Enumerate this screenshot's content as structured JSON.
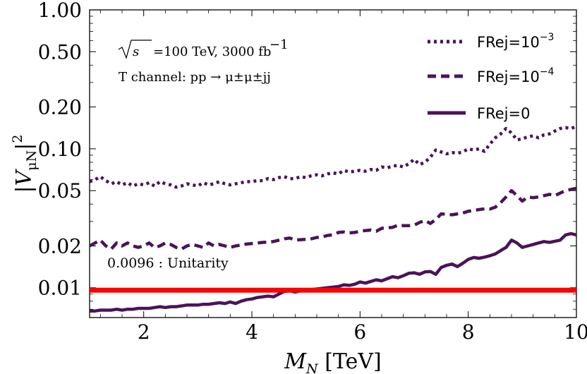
{
  "chart_data": {
    "type": "line",
    "xlabel_var": "M",
    "xlabel_sub": "N",
    "xlabel_unit": "[TeV]",
    "ylabel_left": "|V",
    "ylabel_sub": "μN",
    "ylabel_right": "|",
    "ylabel_sup": "2",
    "xlim": [
      1,
      10
    ],
    "ylim": [
      0.0061,
      1.0
    ],
    "yscale": "log",
    "x_ticks": [
      {
        "value": 2,
        "label": "2"
      },
      {
        "value": 4,
        "label": "4"
      },
      {
        "value": 6,
        "label": "6"
      },
      {
        "value": 8,
        "label": "8"
      },
      {
        "value": 10,
        "label": "10"
      }
    ],
    "y_ticks": [
      {
        "value": 0.01,
        "label": "0.01"
      },
      {
        "value": 0.02,
        "label": "0.02"
      },
      {
        "value": 0.05,
        "label": "0.05"
      },
      {
        "value": 0.1,
        "label": "0.10"
      },
      {
        "value": 0.2,
        "label": "0.20"
      },
      {
        "value": 0.5,
        "label": "0.50"
      },
      {
        "value": 1.0,
        "label": "1.00"
      }
    ],
    "annotations": {
      "sqrt_s": "√s",
      "energy_text": "=100 TeV, 3000 fb",
      "energy_sup": "−1",
      "channel_text": "T channel: pp → μ±μ±jj"
    },
    "unitarity": {
      "value": 0.0096,
      "label": "0.0096 : Unitarity",
      "color": "#ff0000"
    },
    "series_color": "#4a1458",
    "legend_position": "top-right",
    "series": [
      {
        "name": "FRej=10^-3",
        "legend_base": "FRej=10",
        "legend_sup": "−3",
        "style": "dotted",
        "x": [
          1.0,
          1.1,
          1.2,
          1.3,
          1.4,
          1.5,
          1.6,
          1.7,
          1.8,
          1.9,
          2.0,
          2.1,
          2.2,
          2.3,
          2.4,
          2.5,
          2.6,
          2.7,
          2.8,
          2.9,
          3.0,
          3.1,
          3.2,
          3.3,
          3.4,
          3.5,
          3.6,
          3.7,
          3.8,
          3.9,
          4.0,
          4.1,
          4.2,
          4.3,
          4.4,
          4.5,
          4.6,
          4.7,
          4.8,
          4.9,
          5.0,
          5.1,
          5.2,
          5.3,
          5.4,
          5.5,
          5.6,
          5.7,
          5.8,
          5.9,
          6.0,
          6.1,
          6.2,
          6.3,
          6.4,
          6.5,
          6.6,
          6.7,
          6.8,
          6.9,
          7.0,
          7.1,
          7.2,
          7.3,
          7.4,
          7.5,
          7.6,
          7.7,
          7.8,
          7.9,
          8.0,
          8.1,
          8.2,
          8.3,
          8.4,
          8.5,
          8.6,
          8.7,
          8.8,
          8.9,
          9.0,
          9.1,
          9.2,
          9.3,
          9.4,
          9.5,
          9.6,
          9.7,
          9.8,
          9.9,
          10.0
        ],
        "values": [
          0.058,
          0.06,
          0.063,
          0.059,
          0.056,
          0.058,
          0.055,
          0.057,
          0.054,
          0.056,
          0.055,
          0.057,
          0.054,
          0.058,
          0.056,
          0.055,
          0.053,
          0.054,
          0.056,
          0.055,
          0.054,
          0.057,
          0.055,
          0.056,
          0.058,
          0.056,
          0.055,
          0.056,
          0.057,
          0.058,
          0.058,
          0.059,
          0.059,
          0.061,
          0.06,
          0.062,
          0.063,
          0.061,
          0.061,
          0.063,
          0.062,
          0.064,
          0.065,
          0.064,
          0.066,
          0.067,
          0.066,
          0.07,
          0.068,
          0.069,
          0.07,
          0.069,
          0.071,
          0.07,
          0.074,
          0.073,
          0.075,
          0.076,
          0.074,
          0.078,
          0.084,
          0.077,
          0.08,
          0.087,
          0.098,
          0.095,
          0.092,
          0.094,
          0.093,
          0.095,
          0.1,
          0.098,
          0.1,
          0.096,
          0.108,
          0.12,
          0.128,
          0.14,
          0.13,
          0.116,
          0.118,
          0.122,
          0.124,
          0.12,
          0.126,
          0.128,
          0.134,
          0.14,
          0.142,
          0.14,
          0.145
        ]
      },
      {
        "name": "FRej=10^-4",
        "legend_base": "FRej=10",
        "legend_sup": "−4",
        "style": "dashed",
        "x": [
          1.0,
          1.1,
          1.2,
          1.3,
          1.4,
          1.5,
          1.6,
          1.7,
          1.8,
          1.9,
          2.0,
          2.1,
          2.2,
          2.3,
          2.4,
          2.5,
          2.6,
          2.7,
          2.8,
          2.9,
          3.0,
          3.1,
          3.2,
          3.3,
          3.4,
          3.5,
          3.6,
          3.7,
          3.8,
          3.9,
          4.0,
          4.1,
          4.2,
          4.3,
          4.4,
          4.5,
          4.6,
          4.7,
          4.8,
          4.9,
          5.0,
          5.1,
          5.2,
          5.3,
          5.4,
          5.5,
          5.6,
          5.7,
          5.8,
          5.9,
          6.0,
          6.1,
          6.2,
          6.3,
          6.4,
          6.5,
          6.6,
          6.7,
          6.8,
          6.9,
          7.0,
          7.1,
          7.2,
          7.3,
          7.4,
          7.5,
          7.6,
          7.7,
          7.8,
          7.9,
          8.0,
          8.1,
          8.2,
          8.3,
          8.4,
          8.5,
          8.6,
          8.7,
          8.8,
          8.9,
          9.0,
          9.1,
          9.2,
          9.3,
          9.4,
          9.5,
          9.6,
          9.7,
          9.8,
          9.9,
          10.0
        ],
        "values": [
          0.02,
          0.021,
          0.022,
          0.02,
          0.019,
          0.021,
          0.02,
          0.021,
          0.02,
          0.0195,
          0.02,
          0.021,
          0.0195,
          0.02,
          0.021,
          0.0205,
          0.0195,
          0.019,
          0.02,
          0.0205,
          0.02,
          0.0195,
          0.021,
          0.02,
          0.0205,
          0.02,
          0.0195,
          0.02,
          0.0203,
          0.0206,
          0.0208,
          0.021,
          0.0212,
          0.0213,
          0.0215,
          0.022,
          0.0225,
          0.0228,
          0.022,
          0.0222,
          0.0223,
          0.0225,
          0.023,
          0.0232,
          0.0238,
          0.024,
          0.025,
          0.0252,
          0.0248,
          0.025,
          0.0255,
          0.0258,
          0.026,
          0.0255,
          0.0268,
          0.027,
          0.0272,
          0.0282,
          0.028,
          0.028,
          0.0282,
          0.0295,
          0.0305,
          0.029,
          0.031,
          0.034,
          0.0338,
          0.0335,
          0.034,
          0.0345,
          0.0355,
          0.036,
          0.0365,
          0.037,
          0.0368,
          0.038,
          0.041,
          0.045,
          0.05,
          0.046,
          0.042,
          0.045,
          0.0445,
          0.045,
          0.046,
          0.047,
          0.046,
          0.048,
          0.05,
          0.051,
          0.052
        ]
      },
      {
        "name": "FRej=0",
        "legend_base": "FRej=0",
        "legend_sup": "",
        "style": "solid",
        "x": [
          1.0,
          1.1,
          1.2,
          1.3,
          1.4,
          1.5,
          1.6,
          1.7,
          1.8,
          1.9,
          2.0,
          2.1,
          2.2,
          2.3,
          2.4,
          2.5,
          2.6,
          2.7,
          2.8,
          2.9,
          3.0,
          3.1,
          3.2,
          3.3,
          3.4,
          3.5,
          3.6,
          3.7,
          3.8,
          3.9,
          4.0,
          4.1,
          4.2,
          4.3,
          4.4,
          4.5,
          4.6,
          4.7,
          4.8,
          4.9,
          5.0,
          5.1,
          5.2,
          5.3,
          5.4,
          5.5,
          5.6,
          5.7,
          5.8,
          5.9,
          6.0,
          6.1,
          6.2,
          6.3,
          6.4,
          6.5,
          6.6,
          6.7,
          6.8,
          6.9,
          7.0,
          7.1,
          7.2,
          7.3,
          7.4,
          7.5,
          7.6,
          7.7,
          7.8,
          7.9,
          8.0,
          8.1,
          8.2,
          8.3,
          8.4,
          8.5,
          8.6,
          8.7,
          8.8,
          8.9,
          9.0,
          9.1,
          9.2,
          9.3,
          9.4,
          9.5,
          9.6,
          9.7,
          9.8,
          9.9,
          10.0
        ],
        "values": [
          0.0068,
          0.0068,
          0.0069,
          0.0069,
          0.0069,
          0.007,
          0.0069,
          0.007,
          0.007,
          0.0071,
          0.0071,
          0.0071,
          0.0072,
          0.0073,
          0.0072,
          0.0073,
          0.0073,
          0.0074,
          0.0075,
          0.0075,
          0.0075,
          0.0076,
          0.0076,
          0.0077,
          0.0078,
          0.0077,
          0.0079,
          0.0077,
          0.008,
          0.0082,
          0.0083,
          0.0085,
          0.0086,
          0.0087,
          0.0086,
          0.009,
          0.0094,
          0.0095,
          0.0093,
          0.0095,
          0.0097,
          0.0097,
          0.0098,
          0.0099,
          0.01,
          0.0101,
          0.0102,
          0.0105,
          0.0104,
          0.0106,
          0.011,
          0.0108,
          0.0111,
          0.0114,
          0.0112,
          0.0116,
          0.012,
          0.0118,
          0.0122,
          0.0127,
          0.0128,
          0.0125,
          0.013,
          0.0131,
          0.0125,
          0.014,
          0.0145,
          0.0148,
          0.0142,
          0.015,
          0.016,
          0.0165,
          0.0163,
          0.0166,
          0.017,
          0.0175,
          0.0185,
          0.0195,
          0.022,
          0.021,
          0.0195,
          0.02,
          0.0205,
          0.021,
          0.0215,
          0.0212,
          0.0216,
          0.022,
          0.024,
          0.0245,
          0.024
        ]
      }
    ]
  }
}
